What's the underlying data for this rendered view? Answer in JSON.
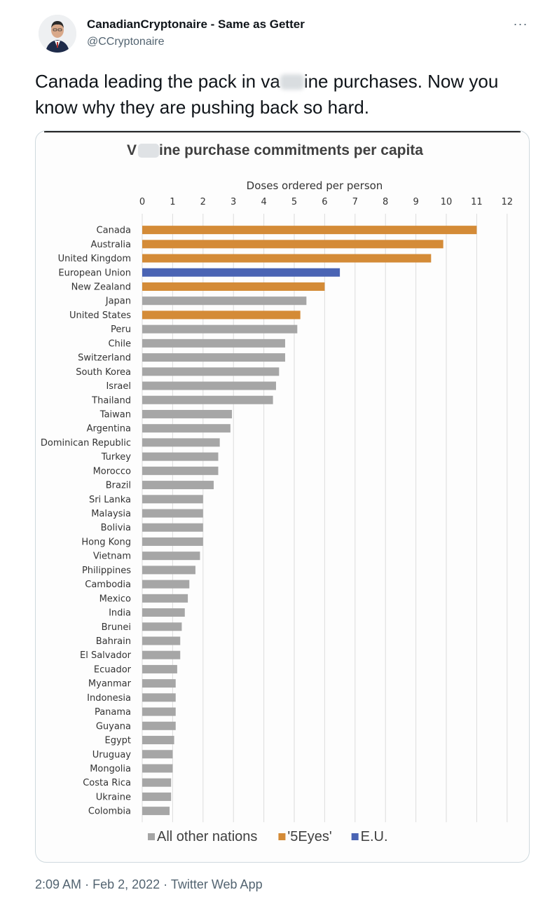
{
  "author": {
    "name": "CanadianCryptonaire - Same as Getter",
    "handle": "@CCryptonaire"
  },
  "tweet": {
    "text": "Canada leading the pack in va  ine purchases. Now you know why they are pushing back so hard.",
    "text_part1": "Canada leading the pack in va",
    "text_part2": "ine purchases. Now you know why they are pushing back so hard."
  },
  "menu": {
    "more_label": "···"
  },
  "footer": {
    "time": "2:09 AM",
    "date": "Feb 2, 2022",
    "source": "Twitter Web App",
    "separator": "·"
  },
  "colors": {
    "five_eyes": "#d48b37",
    "eu": "#4a64b4",
    "other": "#a6a6a6",
    "gridline": "#dcdcdc",
    "text": "#333333"
  },
  "chart_data": {
    "type": "bar",
    "orientation": "horizontal",
    "title": "V  ine purchase commitments per capita",
    "title_part1": "V",
    "title_part2": "ine purchase commitments per capita",
    "xlabel": "Doses ordered per person",
    "xlim": [
      0,
      12
    ],
    "xticks": [
      "0",
      "1",
      "2",
      "3",
      "4",
      "5",
      "6",
      "7",
      "8",
      "9",
      "10",
      "11",
      "12"
    ],
    "grid": true,
    "legend_placement": "bottom-center",
    "legend": [
      {
        "name": "All other nations",
        "group": "other"
      },
      {
        "name": "'5Eyes'",
        "group": "five_eyes"
      },
      {
        "name": "E.U.",
        "group": "eu"
      }
    ],
    "categories": [
      "Canada",
      "Australia",
      "United Kingdom",
      "European Union",
      "New Zealand",
      "Japan",
      "United States",
      "Peru",
      "Chile",
      "Switzerland",
      "South Korea",
      "Israel",
      "Thailand",
      "Taiwan",
      "Argentina",
      "Dominican Republic",
      "Turkey",
      "Morocco",
      "Brazil",
      "Sri Lanka",
      "Malaysia",
      "Bolivia",
      "Hong Kong",
      "Vietnam",
      "Philippines",
      "Cambodia",
      "Mexico",
      "India",
      "Brunei",
      "Bahrain",
      "El Salvador",
      "Ecuador",
      "Myanmar",
      "Indonesia",
      "Panama",
      "Guyana",
      "Egypt",
      "Uruguay",
      "Mongolia",
      "Costa Rica",
      "Ukraine",
      "Colombia"
    ],
    "values": [
      11.0,
      9.9,
      9.5,
      6.5,
      6.0,
      5.4,
      5.2,
      5.1,
      4.7,
      4.7,
      4.5,
      4.4,
      4.3,
      2.95,
      2.9,
      2.55,
      2.5,
      2.5,
      2.35,
      2.0,
      2.0,
      2.0,
      2.0,
      1.9,
      1.75,
      1.55,
      1.5,
      1.4,
      1.3,
      1.25,
      1.25,
      1.15,
      1.1,
      1.1,
      1.1,
      1.1,
      1.05,
      1.0,
      1.0,
      0.95,
      0.95,
      0.9
    ],
    "groups": [
      "five_eyes",
      "five_eyes",
      "five_eyes",
      "eu",
      "five_eyes",
      "other",
      "five_eyes",
      "other",
      "other",
      "other",
      "other",
      "other",
      "other",
      "other",
      "other",
      "other",
      "other",
      "other",
      "other",
      "other",
      "other",
      "other",
      "other",
      "other",
      "other",
      "other",
      "other",
      "other",
      "other",
      "other",
      "other",
      "other",
      "other",
      "other",
      "other",
      "other",
      "other",
      "other",
      "other",
      "other",
      "other",
      "other"
    ]
  }
}
